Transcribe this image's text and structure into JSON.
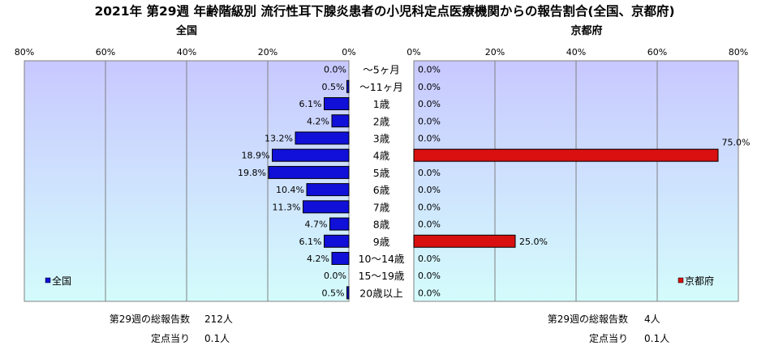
{
  "title": "2021年 第29週 年齢階級別 流行性耳下腺炎患者の小児科定点医療機関からの報告割合(全国、京都府)",
  "colors": {
    "national_bar": "#1010d8",
    "kyoto_bar": "#d81010",
    "plot_top": "#c8c8ff",
    "plot_bottom": "#d4fcfc"
  },
  "chart_data": [
    {
      "type": "bar",
      "orientation": "horizontal",
      "direction": "right-to-left",
      "panel_title": "全国",
      "legend": "全国",
      "legend_position": "bottom-left",
      "xlim": [
        0,
        80
      ],
      "x_ticks": [
        "80%",
        "60%",
        "40%",
        "20%",
        "0%"
      ],
      "grid": true,
      "categories": [
        "〜5ヶ月",
        "〜11ヶ月",
        "1歳",
        "2歳",
        "3歳",
        "4歳",
        "5歳",
        "6歳",
        "7歳",
        "8歳",
        "9歳",
        "10〜14歳",
        "15〜19歳",
        "20歳以上"
      ],
      "values": [
        0.0,
        0.5,
        6.1,
        4.2,
        13.2,
        18.9,
        19.8,
        10.4,
        11.3,
        4.7,
        6.1,
        4.2,
        0.0,
        0.5
      ],
      "labels": [
        "0.0%",
        "0.5%",
        "6.1%",
        "4.2%",
        "13.2%",
        "18.9%",
        "19.8%",
        "10.4%",
        "11.3%",
        "4.7%",
        "6.1%",
        "4.2%",
        "0.0%",
        "0.5%"
      ]
    },
    {
      "type": "bar",
      "orientation": "horizontal",
      "direction": "left-to-right",
      "panel_title": "京都府",
      "legend": "京都府",
      "legend_position": "bottom-right",
      "xlim": [
        0,
        80
      ],
      "x_ticks": [
        "0%",
        "20%",
        "40%",
        "60%",
        "80%"
      ],
      "grid": true,
      "categories": [
        "〜5ヶ月",
        "〜11ヶ月",
        "1歳",
        "2歳",
        "3歳",
        "4歳",
        "5歳",
        "6歳",
        "7歳",
        "8歳",
        "9歳",
        "10〜14歳",
        "15〜19歳",
        "20歳以上"
      ],
      "values": [
        0.0,
        0.0,
        0.0,
        0.0,
        0.0,
        75.0,
        0.0,
        0.0,
        0.0,
        0.0,
        25.0,
        0.0,
        0.0,
        0.0
      ],
      "labels": [
        "0.0%",
        "0.0%",
        "0.0%",
        "0.0%",
        "0.0%",
        "75.0%",
        "0.0%",
        "0.0%",
        "0.0%",
        "0.0%",
        "25.0%",
        "0.0%",
        "0.0%",
        "0.0%"
      ]
    }
  ],
  "footer": {
    "national": {
      "total_label": "第29週の総報告数",
      "total_value": "212人",
      "per_site_label": "定点当り",
      "per_site_value": "0.1人"
    },
    "kyoto": {
      "total_label": "第29週の総報告数",
      "total_value": "4人",
      "per_site_label": "定点当り",
      "per_site_value": "0.1人"
    }
  }
}
